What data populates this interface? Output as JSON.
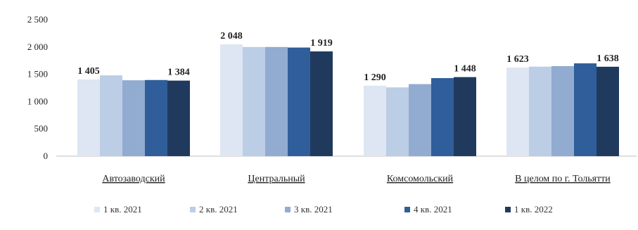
{
  "chart_data": {
    "type": "bar",
    "title": "",
    "xlabel": "",
    "ylabel": "",
    "ylim": [
      0,
      2500
    ],
    "yticks": [
      0,
      500,
      1000,
      1500,
      2000,
      2500
    ],
    "ytick_labels": [
      "0",
      "500",
      "1 000",
      "1 500",
      "2 000",
      "2 500"
    ],
    "grid": false,
    "legend_position": "bottom",
    "categories": [
      "Автозаводский",
      "Центральный",
      "Комсомольский",
      "В целом по г. Тольятти"
    ],
    "series": [
      {
        "name": "1 кв. 2021",
        "color": "#dde6f2",
        "values": [
          1405,
          2048,
          1290,
          1623
        ]
      },
      {
        "name": "2 кв. 2021",
        "color": "#bccde6",
        "values": [
          1480,
          2000,
          1260,
          1640
        ]
      },
      {
        "name": "3 кв. 2021",
        "color": "#92abd0",
        "values": [
          1390,
          2000,
          1320,
          1650
        ]
      },
      {
        "name": "4 кв. 2021",
        "color": "#2f5e9a",
        "values": [
          1395,
          1990,
          1430,
          1700
        ]
      },
      {
        "name": "1 кв. 2022",
        "color": "#203a5e",
        "values": [
          1384,
          1919,
          1448,
          1638
        ]
      }
    ],
    "data_labels": [
      {
        "category": 0,
        "series": 0,
        "text": "1 405"
      },
      {
        "category": 0,
        "series": 4,
        "text": "1 384"
      },
      {
        "category": 1,
        "series": 0,
        "text": "2 048"
      },
      {
        "category": 1,
        "series": 4,
        "text": "1 919"
      },
      {
        "category": 2,
        "series": 0,
        "text": "1 290"
      },
      {
        "category": 2,
        "series": 4,
        "text": "1 448"
      },
      {
        "category": 3,
        "series": 0,
        "text": "1 623"
      },
      {
        "category": 3,
        "series": 4,
        "text": "1 638"
      }
    ]
  }
}
